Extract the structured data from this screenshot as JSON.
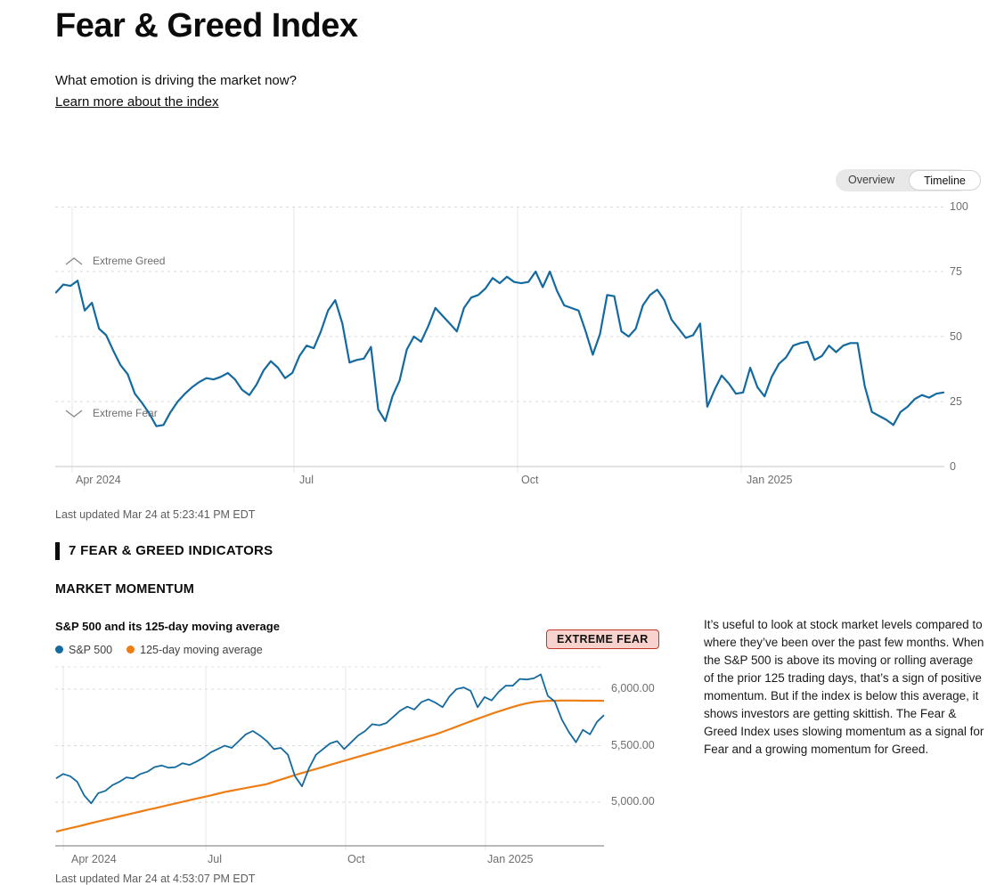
{
  "page": {
    "title": "Fear & Greed Index",
    "subtitle": "What emotion is driving the market now?",
    "learn_link": "Learn more about the index"
  },
  "toggle": {
    "options": [
      "Overview",
      "Timeline"
    ],
    "selected": "Timeline"
  },
  "timeline_section": {
    "zone_high_label": "Extreme Greed",
    "zone_low_label": "Extreme Fear",
    "last_updated": "Last updated Mar 24 at 5:23:41 PM EDT"
  },
  "indicators_header": "7 FEAR & GREED INDICATORS",
  "section_title": "MARKET MOMENTUM",
  "momentum_section": {
    "chart_title": "S&P 500 and its 125-day moving average",
    "legend": [
      "S&P 500",
      "125-day moving average"
    ],
    "badge": "EXTREME FEAR",
    "description": "It’s useful to look at stock market levels compared to where they’ve been over the past few months. When the S&P 500 is above its moving or rolling average of the prior 125 trading days, that’s a sign of positive momentum. But if the index is below this average, it shows investors are getting skittish. The Fear & Greed Index uses slowing momentum as a signal for Fear and a growing momentum for Greed.",
    "last_updated": "Last updated Mar 24 at 4:53:07 PM EDT"
  },
  "icons": {
    "zone_high": "chevron-up",
    "zone_low": "chevron-down"
  },
  "colors": {
    "index_line": "#146a9f",
    "sp500_line": "#146a9f",
    "ma_line": "#ee7d14",
    "badge_bg": "#f8d2cc",
    "badge_border": "#c0392b"
  },
  "chart_data": [
    {
      "type": "line",
      "title": "Fear & Greed Index timeline",
      "x_ticks": [
        "Apr 2024",
        "Jul",
        "Oct",
        "Jan 2025"
      ],
      "x_range": [
        "Mar 2024",
        "Mar 2025"
      ],
      "ylim": [
        0,
        100
      ],
      "y_ticks": [
        100,
        75,
        50,
        25,
        0
      ],
      "grid": "dashed horizontal at 25/50/75/100, solid monthly verticals",
      "legend_position": "none",
      "annotations": [
        "Extreme Greed (above 75)",
        "Extreme Fear (below 25)"
      ],
      "series": [
        {
          "name": "Fear & Greed Index",
          "values": [
            67,
            70,
            69.5,
            71.5,
            60,
            63,
            53,
            50.5,
            44.5,
            39,
            35.5,
            28,
            24.5,
            20.5,
            15.5,
            16,
            21,
            25,
            28,
            30.5,
            32.5,
            34,
            33.5,
            34.5,
            36,
            33.5,
            29.5,
            27.5,
            31.5,
            37,
            40.5,
            38,
            34,
            36,
            42.5,
            46.5,
            45.5,
            52,
            60,
            64,
            55,
            40,
            41,
            41.5,
            46,
            22,
            17.5,
            27,
            33,
            45,
            50,
            48,
            54,
            61,
            58,
            55,
            52,
            61,
            65,
            66,
            68.5,
            72.5,
            70.5,
            73,
            71,
            70.5,
            71,
            75,
            69,
            75,
            67.5,
            62,
            61,
            60,
            52,
            43,
            51,
            66,
            65.5,
            52,
            50,
            53,
            62,
            66,
            68,
            64,
            56.5,
            53,
            49.5,
            50.5,
            55,
            23,
            29.5,
            35,
            32,
            28,
            28.5,
            38,
            30.5,
            27,
            34.5,
            39.5,
            42,
            46.5,
            47.5,
            48,
            41,
            42.5,
            46.5,
            44,
            46.5,
            47.5,
            47.5,
            31,
            21,
            19.5,
            18,
            16,
            21,
            23,
            26,
            27.5,
            26.5,
            28,
            28.5
          ]
        }
      ]
    },
    {
      "type": "line",
      "title": "S&P 500 and its 125-day moving average",
      "x_ticks": [
        "Apr 2024",
        "Jul",
        "Oct",
        "Jan 2025"
      ],
      "x_range": [
        "Mar 2024",
        "Mar 2025"
      ],
      "ylim": [
        4614,
        6205
      ],
      "y_ticks": [
        "6,000.00",
        "5,500.00",
        "5,000.00"
      ],
      "y_tick_values": [
        6000,
        5500,
        5000
      ],
      "grid": "dashed horizontal, solid monthly verticals",
      "legend_position": "top-left",
      "series": [
        {
          "name": "S&P 500",
          "values": [
            5210,
            5250,
            5230,
            5180,
            5060,
            4990,
            5080,
            5100,
            5150,
            5180,
            5220,
            5210,
            5250,
            5270,
            5310,
            5325,
            5305,
            5310,
            5345,
            5330,
            5360,
            5395,
            5440,
            5470,
            5500,
            5480,
            5540,
            5600,
            5630,
            5590,
            5540,
            5470,
            5480,
            5420,
            5230,
            5140,
            5300,
            5420,
            5470,
            5520,
            5540,
            5470,
            5530,
            5590,
            5630,
            5690,
            5680,
            5700,
            5755,
            5810,
            5845,
            5820,
            5885,
            5910,
            5880,
            5840,
            5935,
            6000,
            6015,
            5985,
            5840,
            5930,
            5900,
            5975,
            6030,
            6030,
            6090,
            6085,
            6095,
            6130,
            5940,
            5890,
            5730,
            5620,
            5530,
            5640,
            5600,
            5710,
            5770
          ]
        },
        {
          "name": "125-day moving average",
          "values": [
            4740,
            4755,
            4770,
            4784,
            4799,
            4815,
            4830,
            4845,
            4859,
            4874,
            4888,
            4903,
            4917,
            4932,
            4946,
            4960,
            4975,
            4989,
            5003,
            5018,
            5032,
            5046,
            5060,
            5075,
            5090,
            5102,
            5113,
            5125,
            5137,
            5148,
            5160,
            5180,
            5200,
            5220,
            5240,
            5258,
            5276,
            5294,
            5312,
            5330,
            5348,
            5366,
            5384,
            5402,
            5420,
            5438,
            5456,
            5474,
            5492,
            5510,
            5528,
            5546,
            5564,
            5582,
            5600,
            5622,
            5645,
            5668,
            5692,
            5715,
            5738,
            5760,
            5782,
            5802,
            5822,
            5842,
            5860,
            5875,
            5886,
            5892,
            5896,
            5898,
            5899,
            5899,
            5899,
            5898,
            5898,
            5898,
            5897
          ]
        }
      ]
    }
  ]
}
